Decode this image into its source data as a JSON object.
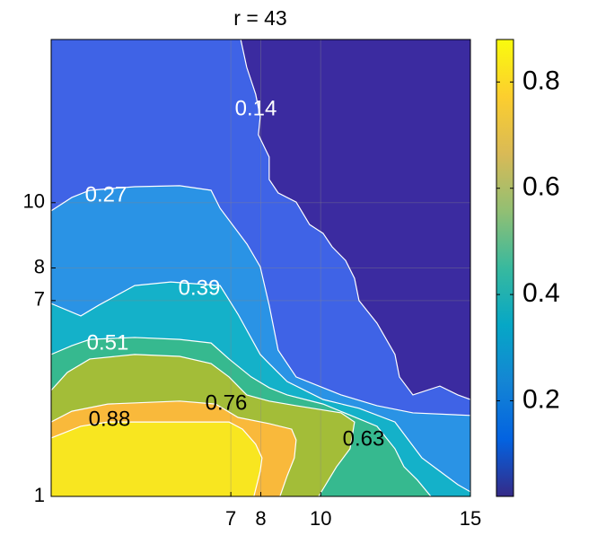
{
  "chart_data": {
    "type": "contourf",
    "title": "r = 43",
    "xlim": [
      1,
      15
    ],
    "ylim": [
      1,
      15
    ],
    "xticks": [
      7,
      8,
      10,
      15
    ],
    "yticks": [
      1,
      7,
      8,
      10
    ],
    "grid": true,
    "background": "#3b2ba0",
    "colorbar": {
      "clim": [
        0.02,
        0.88
      ],
      "ticks": [
        0.2,
        0.4,
        0.6,
        0.8
      ],
      "colormap": [
        "#352a87",
        "#0363e1",
        "#1485d4",
        "#06a7c6",
        "#38b99e",
        "#92bf73",
        "#d9ba56",
        "#fcce2e",
        "#f9fb0e"
      ]
    },
    "regions": [
      {
        "level": 0.14,
        "color": "#3f63e6",
        "x": [
          1,
          7.33,
          7.53,
          7.83,
          7.98,
          7.92,
          8.28,
          8.28,
          8.58,
          9.18,
          9.63,
          10.08,
          10.38,
          10.83,
          11.13,
          11.28,
          11.88,
          12.48,
          12.63,
          13.08,
          13.98,
          14.58,
          15,
          15,
          1
        ],
        "y": [
          15,
          15,
          14.15,
          13.32,
          12.63,
          12.08,
          11.4,
          10.71,
          10.3,
          10.02,
          9.33,
          9.06,
          8.65,
          8.23,
          7.68,
          7.0,
          6.31,
          5.35,
          4.66,
          4.11,
          4.38,
          4.11,
          3.97,
          1,
          1
        ]
      },
      {
        "level": 0.27,
        "color": "#2a93e5",
        "x": [
          1,
          1.69,
          2.29,
          3.79,
          5.29,
          6.34,
          6.64,
          7.09,
          7.54,
          7.98,
          8.28,
          8.58,
          9.18,
          10.68,
          11.88,
          13.08,
          15,
          15,
          1
        ],
        "y": [
          9.75,
          10.16,
          10.38,
          10.49,
          10.52,
          10.38,
          9.83,
          9.28,
          8.73,
          8.04,
          6.86,
          5.48,
          4.66,
          4.11,
          3.78,
          3.56,
          3.48,
          1,
          1
        ]
      },
      {
        "level": 0.39,
        "color": "#14b1c9",
        "x": [
          1,
          1.99,
          2.59,
          3.79,
          4.99,
          6.64,
          7.24,
          7.98,
          8.28,
          8.88,
          10.08,
          11.28,
          12.48,
          12.93,
          13.38,
          13.98,
          14.58,
          15,
          15,
          1
        ],
        "y": [
          6.91,
          6.53,
          6.86,
          7.46,
          7.57,
          7.46,
          6.58,
          5.35,
          5.07,
          4.52,
          3.97,
          3.7,
          3.28,
          2.73,
          2.18,
          1.77,
          1.36,
          1.14,
          1,
          1
        ]
      },
      {
        "level": 0.51,
        "color": "#36b98f",
        "x": [
          1,
          1.69,
          2.29,
          3.79,
          5.29,
          6.34,
          6.94,
          7.68,
          8.28,
          8.88,
          10.08,
          11.88,
          12.48,
          12.78,
          13.23,
          13.68,
          1
        ],
        "y": [
          5.35,
          5.62,
          5.81,
          5.87,
          5.81,
          5.7,
          5.21,
          4.66,
          4.33,
          4.11,
          3.83,
          3.15,
          2.46,
          1.91,
          1.5,
          1,
          1
        ]
      },
      {
        "level": 0.63,
        "color": "#a3bd38",
        "x": [
          1,
          1.54,
          2.29,
          3.79,
          5.29,
          6.34,
          6.94,
          7.53,
          8.28,
          9.18,
          10.68,
          11.13,
          10.98,
          10.53,
          9.93,
          1
        ],
        "y": [
          4.25,
          4.8,
          5.21,
          5.35,
          5.29,
          5.07,
          4.66,
          4.11,
          3.92,
          3.78,
          3.56,
          3.28,
          2.46,
          1.91,
          1,
          1
        ]
      },
      {
        "level": 0.76,
        "color": "#f9b93b",
        "x": [
          1,
          1.69,
          2.89,
          5.29,
          6.49,
          7.24,
          8.28,
          9.03,
          9.18,
          9.12,
          8.88,
          8.64,
          1
        ],
        "y": [
          3.28,
          3.61,
          3.83,
          3.92,
          3.83,
          3.42,
          3.23,
          3.06,
          2.73,
          2.18,
          1.63,
          1,
          1
        ]
      },
      {
        "level": 0.88,
        "color": "#f8e620",
        "x": [
          1,
          1.99,
          2.89,
          5.29,
          6.94,
          7.39,
          7.83,
          8.04,
          7.98,
          7.77,
          1
        ],
        "y": [
          2.79,
          3.15,
          3.28,
          3.28,
          3.28,
          3.06,
          2.6,
          2.18,
          1.77,
          1,
          1
        ]
      }
    ]
  }
}
